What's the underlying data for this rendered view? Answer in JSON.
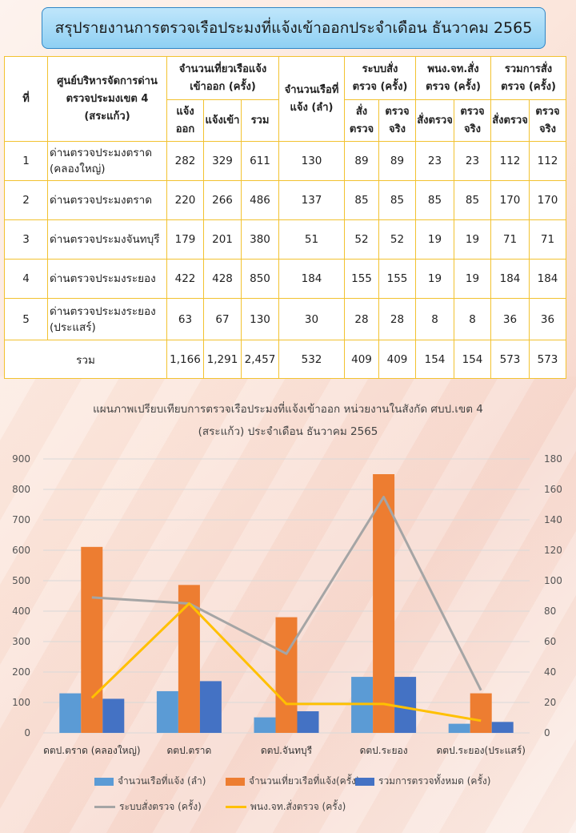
{
  "header": {
    "title": "สรุปรายงานการตรวจเรือประมงที่แจ้งเข้าออกประจำเดือน  ธันวาคม 2565"
  },
  "table": {
    "h_no": "ที่",
    "h_center": "ศูนย์บริหารจัดการด่านตรวจประมงเขต 4 (สระแก้ว)",
    "h_trips": "จำนวนเที่ยวเรือแจ้งเข้าออก (ครั้ง)",
    "h_boats": "จำนวนเรือที่แจ้ง (ลำ)",
    "h_sys": "ระบบสั่งตรวจ (ครั้ง)",
    "h_officer": "พนง.จท.สั่งตรวจ (ครั้ง)",
    "h_total": "รวมการสั่งตรวจ (ครั้ง)",
    "sub_out": "แจ้งออก",
    "sub_in": "แจ้งเข้า",
    "sub_sum": "รวม",
    "sub_order": "สั่งตรวจ",
    "sub_actual": "ตรวจจริง",
    "rows": [
      {
        "no": "1",
        "name": "ด่านตรวจประมงตราด (คลองใหญ่)",
        "out": "282",
        "in": "329",
        "sum": "611",
        "boats": "130",
        "s1": "89",
        "s2": "89",
        "o1": "23",
        "o2": "23",
        "t1": "112",
        "t2": "112"
      },
      {
        "no": "2",
        "name": "ด่านตรวจประมงตราด",
        "out": "220",
        "in": "266",
        "sum": "486",
        "boats": "137",
        "s1": "85",
        "s2": "85",
        "o1": "85",
        "o2": "85",
        "t1": "170",
        "t2": "170"
      },
      {
        "no": "3",
        "name": "ด่านตรวจประมงจันทบุรี",
        "out": "179",
        "in": "201",
        "sum": "380",
        "boats": "51",
        "s1": "52",
        "s2": "52",
        "o1": "19",
        "o2": "19",
        "t1": "71",
        "t2": "71"
      },
      {
        "no": "4",
        "name": "ด่านตรวจประมงระยอง",
        "out": "422",
        "in": "428",
        "sum": "850",
        "boats": "184",
        "s1": "155",
        "s2": "155",
        "o1": "19",
        "o2": "19",
        "t1": "184",
        "t2": "184"
      },
      {
        "no": "5",
        "name": "ด่านตรวจประมงระยอง (ประแสร์)",
        "out": "63",
        "in": "67",
        "sum": "130",
        "boats": "30",
        "s1": "28",
        "s2": "28",
        "o1": "8",
        "o2": "8",
        "t1": "36",
        "t2": "36"
      }
    ],
    "total": {
      "label": "รวม",
      "out": "1,166",
      "in": "1,291",
      "sum": "2,457",
      "boats": "532",
      "s1": "409",
      "s2": "409",
      "o1": "154",
      "o2": "154",
      "t1": "573",
      "t2": "573"
    }
  },
  "chart_data": {
    "type": "bar",
    "title": "แผนภาพเปรียบเทียบการตรวจเรือประมงที่แจ้งเข้าออก  หน่วยงานในสังกัด  ศบป.เขต 4",
    "subtitle": "(สระแก้ว)  ประจำเดือน  ธันวาคม  2565",
    "categories": [
      "ดตป.ตราด (คลองใหญ่)",
      "ดตป.ตราด",
      "ดตป.จันทบุรี",
      "ดตป.ระยอง",
      "ดตป.ระยอง(ประแสร์)"
    ],
    "ylim_left": [
      0,
      900
    ],
    "ylim_right": [
      0,
      180
    ],
    "yticks_left": [
      "0",
      "100",
      "200",
      "300",
      "400",
      "500",
      "600",
      "700",
      "800",
      "900"
    ],
    "yticks_right": [
      "0",
      "20",
      "40",
      "60",
      "80",
      "100",
      "120",
      "140",
      "160",
      "180"
    ],
    "grid": true,
    "legend_position": "bottom",
    "series": [
      {
        "name": "จำนวนเรือที่แจ้ง (ลำ)",
        "kind": "bar",
        "axis": "left",
        "color": "#5b9bd5",
        "values": [
          130,
          137,
          51,
          184,
          30
        ]
      },
      {
        "name": "จำนวนเที่ยวเรือที่แจ้ง(ครั้ง)",
        "kind": "bar",
        "axis": "left",
        "color": "#ed7d31",
        "values": [
          611,
          486,
          380,
          850,
          130
        ]
      },
      {
        "name": "รวมการตรวจทั้งหมด (ครั้ง)",
        "kind": "bar",
        "axis": "left",
        "color": "#4472c4",
        "values": [
          112,
          170,
          71,
          184,
          36
        ]
      },
      {
        "name": "ระบบสั่งตรวจ (ครั้ง)",
        "kind": "line",
        "axis": "right",
        "color": "#a5a5a5",
        "values": [
          89,
          85,
          52,
          155,
          28
        ]
      },
      {
        "name": "พนง.จท.สั่งตรวจ (ครั้ง)",
        "kind": "line",
        "axis": "right",
        "color": "#ffc000",
        "values": [
          23,
          85,
          19,
          19,
          8
        ]
      }
    ]
  }
}
